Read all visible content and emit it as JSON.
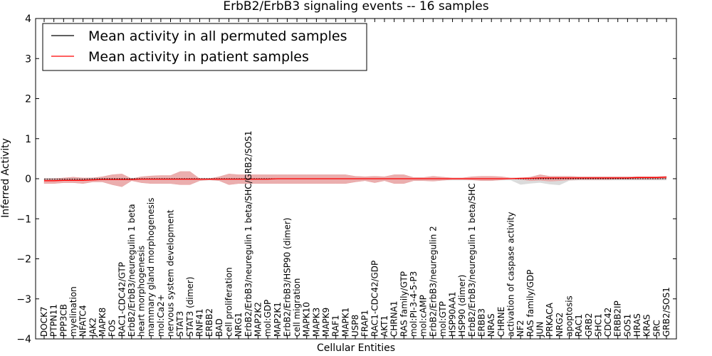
{
  "chart_data": {
    "type": "line",
    "title": "ErbB2/ErbB3 signaling events -- 16 samples",
    "xlabel": "Cellular Entities",
    "ylabel": "Inferred Activity",
    "ylim": [
      -4,
      4
    ],
    "yticks": [
      -4,
      -3,
      -2,
      -1,
      0,
      1,
      2,
      3,
      4
    ],
    "grid": false,
    "legend_position": "top-left",
    "categories": [
      "DOCK7",
      "PTPN11",
      "PPP3CB",
      "myelination",
      "NFATC4",
      "JAK2",
      "MAPK8",
      "FOS",
      "RAC1-CDC42/GTP",
      "ErbB2/ErbB3/neuregulin 1 beta",
      "heart morphogenesis",
      "mammary gland morphogenesis",
      "mol:Ca2+",
      "nervous system development",
      "STAT3",
      "STAT3 (dimer)",
      "RNF41",
      "ERBB2",
      "BAD",
      "cell proliferation",
      "NRG1",
      "ErbB2/ErbB3/neuregulin 1 beta/SHC/GRB2/SOS1",
      "MAP2K2",
      "mol:GDP",
      "MAP2K1",
      "ErbB2/ErbB3/HSP90 (dimer)",
      "cell migration",
      "MAPK10",
      "MAPK3",
      "MAPK9",
      "RAF1",
      "MAPK1",
      "USP8",
      "FRAP1",
      "RAC1-CDC42/GDP",
      "AKT1",
      "CHRNA1",
      "RAS family/GTP",
      "mol:PI-3-4-5-P3",
      "mol:cAMP",
      "ErbB2/ErbB3/neuregulin 2",
      "mol:GTP",
      "HSP90AA1",
      "HSP90 (dimer)",
      "ErbB2/ErbB3/neuregulin 1 beta/SHC",
      "ERBB3",
      "NRAS",
      "CHRNE",
      "activation of caspase activity",
      "NF2",
      "RAS family/GDP",
      "JUN",
      "PRKACA",
      "NRG2",
      "apoptosis",
      "RAC1",
      "GRB2",
      "SHC1",
      "CDC42",
      "ERBB2IP",
      "SOS1",
      "HRAS",
      "KRAS",
      "SRC",
      "GRB2/SOS1"
    ],
    "series": [
      {
        "name": "Mean activity in all permuted samples",
        "color": "#000000",
        "values": [
          -0.01,
          -0.01,
          -0.01,
          -0.01,
          -0.01,
          0.0,
          0.0,
          0.0,
          0.0,
          0.0,
          0.0,
          0.0,
          0.0,
          0.0,
          0.0,
          0.0,
          0.0,
          0.0,
          0.0,
          0.0,
          0.0,
          0.0,
          0.0,
          0.0,
          0.0,
          0.0,
          0.0,
          0.0,
          0.0,
          0.0,
          0.0,
          0.0,
          0.0,
          0.0,
          0.0,
          0.0,
          0.0,
          0.0,
          0.0,
          0.0,
          0.0,
          0.0,
          0.0,
          0.0,
          0.0,
          0.0,
          0.0,
          0.0,
          0.0,
          0.0,
          0.0,
          0.0,
          0.0,
          0.0,
          0.0,
          0.0,
          0.0,
          0.0,
          0.0,
          0.0,
          0.0,
          0.0,
          0.0,
          0.0,
          0.0
        ]
      },
      {
        "name": "Mean activity in patient samples",
        "color": "#ff0000",
        "values": [
          -0.05,
          -0.05,
          -0.04,
          -0.04,
          -0.04,
          -0.03,
          -0.02,
          -0.02,
          -0.02,
          -0.02,
          -0.01,
          -0.01,
          -0.01,
          -0.01,
          -0.01,
          -0.01,
          -0.01,
          -0.01,
          -0.01,
          -0.01,
          -0.01,
          -0.01,
          -0.01,
          -0.01,
          0.0,
          0.0,
          0.0,
          0.0,
          0.0,
          0.0,
          0.0,
          0.0,
          0.0,
          0.0,
          0.0,
          0.0,
          0.0,
          0.0,
          0.0,
          0.0,
          0.0,
          0.0,
          0.0,
          0.0,
          0.0,
          0.0,
          0.0,
          0.0,
          0.0,
          0.01,
          0.01,
          0.02,
          0.02,
          0.02,
          0.02,
          0.02,
          0.02,
          0.02,
          0.02,
          0.02,
          0.02,
          0.03,
          0.03,
          0.03,
          0.04
        ]
      }
    ],
    "permuted_band": {
      "color": "#cccccc",
      "upper": [
        0.02,
        0.02,
        0.02,
        0.02,
        0.02,
        0.02,
        0.02,
        0.02,
        0.02,
        0.02,
        0.02,
        0.02,
        0.02,
        0.02,
        0.02,
        0.02,
        0.02,
        0.02,
        0.02,
        0.02,
        0.02,
        0.02,
        0.02,
        0.02,
        0.02,
        0.02,
        0.02,
        0.02,
        0.02,
        0.02,
        0.02,
        0.02,
        0.02,
        0.02,
        0.02,
        0.02,
        0.02,
        0.02,
        0.02,
        0.02,
        0.02,
        0.02,
        0.02,
        0.02,
        0.02,
        0.02,
        0.02,
        0.02,
        0.02,
        0.02,
        0.02,
        0.02,
        0.02,
        0.02,
        0.02,
        0.02,
        0.02,
        0.02,
        0.02,
        0.02,
        0.02,
        0.02,
        0.02,
        0.02,
        0.02
      ],
      "lower": [
        -0.04,
        -0.04,
        -0.04,
        -0.04,
        -0.04,
        -0.04,
        -0.04,
        -0.04,
        -0.04,
        -0.04,
        -0.04,
        -0.04,
        -0.04,
        -0.04,
        -0.04,
        -0.04,
        -0.04,
        -0.04,
        -0.04,
        -0.04,
        -0.04,
        -0.04,
        -0.04,
        -0.04,
        -0.04,
        -0.04,
        -0.04,
        -0.04,
        -0.04,
        -0.04,
        -0.04,
        -0.04,
        -0.04,
        -0.04,
        -0.04,
        -0.04,
        -0.04,
        -0.04,
        -0.04,
        -0.04,
        -0.04,
        -0.04,
        -0.04,
        -0.04,
        -0.04,
        -0.04,
        -0.04,
        -0.04,
        -0.04,
        -0.15,
        -0.12,
        -0.1,
        -0.14,
        -0.16,
        -0.05,
        -0.04,
        -0.04,
        -0.04,
        -0.04,
        -0.04,
        -0.04,
        -0.04,
        -0.04,
        -0.04,
        -0.04
      ]
    },
    "patient_band": {
      "color": "#e8a0a0",
      "upper": [
        0.0,
        0.0,
        0.02,
        0.04,
        0.02,
        0.02,
        0.05,
        0.1,
        0.12,
        0.0,
        0.05,
        0.07,
        0.08,
        0.08,
        0.18,
        0.18,
        0.0,
        0.0,
        0.05,
        0.12,
        0.1,
        0.1,
        0.1,
        0.1,
        0.1,
        0.1,
        0.1,
        0.1,
        0.1,
        0.1,
        0.1,
        0.1,
        0.06,
        0.05,
        0.06,
        0.05,
        0.1,
        0.1,
        0.03,
        0.03,
        0.06,
        0.04,
        0.02,
        0.02,
        0.05,
        0.06,
        0.06,
        0.05,
        0.02,
        0.02,
        0.04,
        0.1,
        0.06,
        0.06,
        0.06,
        0.05,
        0.05,
        0.05,
        0.05,
        0.05,
        0.05,
        0.05,
        0.05,
        0.05,
        0.06
      ],
      "lower": [
        -0.12,
        -0.12,
        -0.1,
        -0.1,
        -0.12,
        -0.08,
        -0.08,
        -0.15,
        -0.2,
        -0.05,
        -0.1,
        -0.12,
        -0.12,
        -0.12,
        -0.15,
        -0.15,
        -0.05,
        -0.03,
        -0.05,
        -0.15,
        -0.12,
        -0.12,
        -0.12,
        -0.12,
        -0.12,
        -0.12,
        -0.12,
        -0.12,
        -0.12,
        -0.12,
        -0.12,
        -0.12,
        -0.08,
        -0.05,
        -0.1,
        -0.05,
        -0.12,
        -0.12,
        -0.05,
        -0.05,
        -0.06,
        -0.04,
        -0.02,
        -0.02,
        -0.03,
        -0.05,
        -0.05,
        -0.03,
        0.0,
        -0.02,
        -0.05,
        -0.04,
        -0.06,
        -0.05,
        -0.03,
        -0.02,
        -0.02,
        -0.02,
        -0.02,
        -0.01,
        -0.01,
        -0.01,
        -0.01,
        -0.01,
        0.0
      ]
    }
  }
}
